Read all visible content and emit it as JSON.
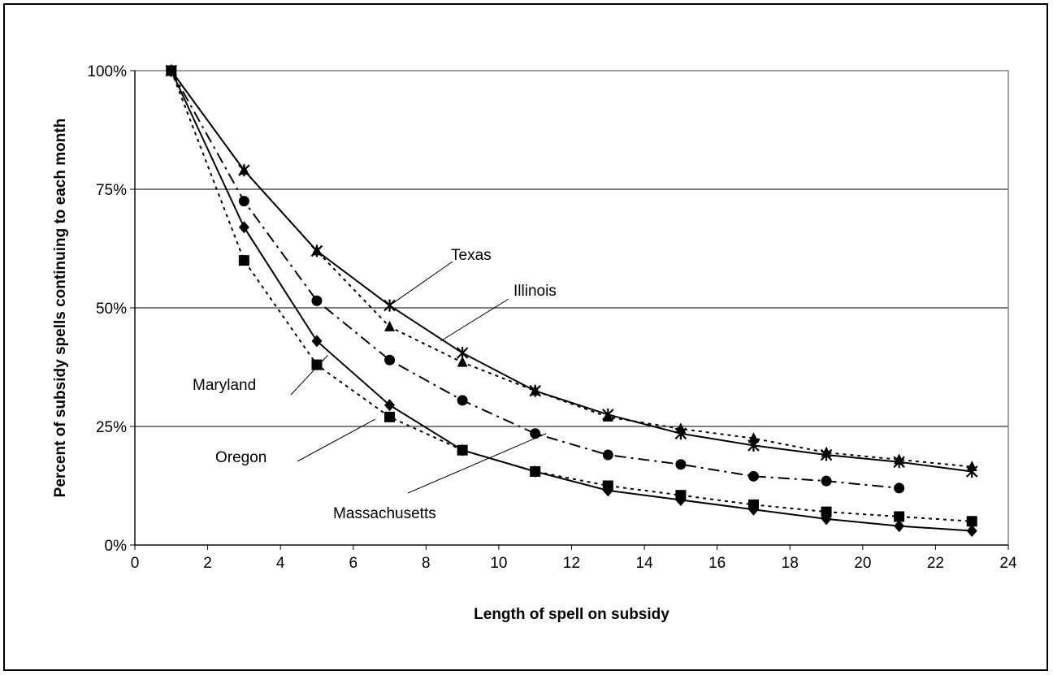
{
  "chart_data": {
    "type": "line",
    "title": "",
    "xlabel": "Length of spell on subsidy",
    "ylabel": "Percent of subsidy spells continuing to each month",
    "xlim": [
      0,
      24
    ],
    "ylim": [
      0,
      100
    ],
    "x_ticks": [
      "0",
      "2",
      "4",
      "6",
      "8",
      "10",
      "12",
      "14",
      "16",
      "18",
      "20",
      "22",
      "24"
    ],
    "y_ticks": [
      "0%",
      "25%",
      "50%",
      "75%",
      "100%"
    ],
    "grid": "horizontal",
    "legend": "none",
    "series": [
      {
        "name": "Texas",
        "marker": "star",
        "line": "solid",
        "x": [
          1,
          3,
          5,
          7,
          9,
          11,
          13,
          15,
          17,
          19,
          21,
          23
        ],
        "y": [
          100,
          79,
          62,
          50.5,
          40.5,
          32.5,
          27.5,
          23.5,
          21,
          19,
          17.5,
          15.5
        ]
      },
      {
        "name": "Illinois",
        "marker": "triangle",
        "line": "dotted",
        "x": [
          1,
          3,
          5,
          7,
          9,
          11,
          13,
          15,
          17,
          19,
          21,
          23
        ],
        "y": [
          100,
          79,
          62,
          46,
          38.5,
          32.5,
          27,
          24.5,
          22.5,
          19.5,
          18,
          16.5
        ]
      },
      {
        "name": "Maryland",
        "marker": "circle",
        "line": "dash-dot",
        "x": [
          1,
          3,
          5,
          7,
          9,
          11,
          13,
          15,
          17,
          19,
          21
        ],
        "y": [
          100,
          72.5,
          51.5,
          39,
          30.5,
          23.5,
          19,
          17,
          14.5,
          13.5,
          12
        ]
      },
      {
        "name": "Oregon",
        "marker": "square",
        "line": "dotted",
        "x": [
          1,
          3,
          5,
          7,
          9,
          11,
          13,
          15,
          17,
          19,
          21,
          23
        ],
        "y": [
          100,
          60,
          38,
          27,
          20,
          15.5,
          12.5,
          10.5,
          8.5,
          7,
          6,
          5
        ]
      },
      {
        "name": "Massachusetts",
        "marker": "diamond",
        "line": "solid",
        "x": [
          1,
          3,
          5,
          7,
          9,
          11,
          13,
          15,
          17,
          19,
          21,
          23
        ],
        "y": [
          100,
          67,
          43,
          29.5,
          20,
          15.5,
          11.5,
          9.5,
          7.5,
          5.5,
          4,
          3
        ]
      }
    ],
    "annotations": [
      {
        "text": "Texas",
        "points_to_x": 7,
        "points_to_y": 50.5
      },
      {
        "text": "Illinois",
        "points_to_x": 8.4,
        "points_to_y": 43
      },
      {
        "text": "Maryland",
        "points_to_x": 5.3,
        "points_to_y": 40
      },
      {
        "text": "Oregon",
        "points_to_x": 6.6,
        "points_to_y": 26.5
      },
      {
        "text": "Massachusetts",
        "points_to_x": 11.3,
        "points_to_y": 23.5
      }
    ]
  },
  "colors": {
    "line": "#000000",
    "grid": "#000000",
    "plot_border": "#808080",
    "background": "#ffffff"
  }
}
